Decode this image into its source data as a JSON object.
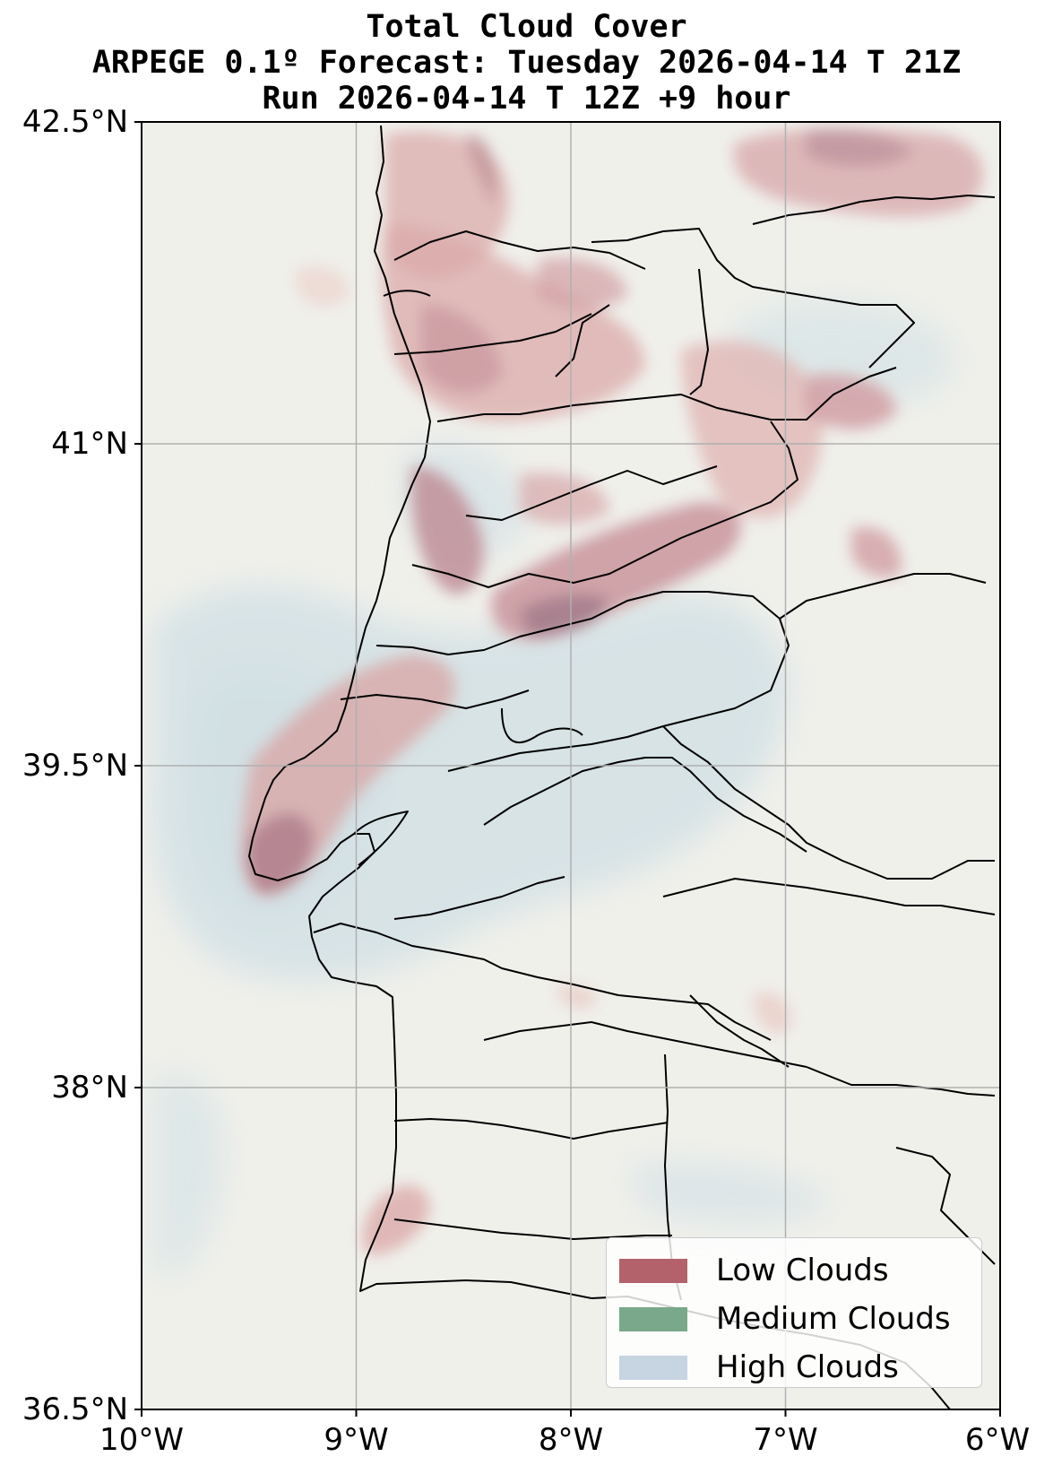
{
  "title": {
    "line1": "Total Cloud Cover",
    "line2": "ARPEGE 0.1º Forecast: Tuesday 2026-04-14 T 21Z",
    "line3": "Run 2026-04-14 T 12Z +9 hour"
  },
  "map": {
    "extent": {
      "lon": [
        -10,
        -6
      ],
      "lat": [
        36.5,
        42.5
      ]
    },
    "grid": true,
    "y_ticks": [
      {
        "lat": 42.5,
        "label": "42.5°N"
      },
      {
        "lat": 41,
        "label": "41°N"
      },
      {
        "lat": 39.5,
        "label": "39.5°N"
      },
      {
        "lat": 38,
        "label": "38°N"
      },
      {
        "lat": 36.5,
        "label": "36.5°N"
      }
    ],
    "x_ticks": [
      {
        "lon": -10,
        "label": "10°W"
      },
      {
        "lon": -9,
        "label": "9°W"
      },
      {
        "lon": -8,
        "label": "8°W"
      },
      {
        "lon": -7,
        "label": "7°W"
      },
      {
        "lon": -6,
        "label": "6°W"
      }
    ],
    "background_color": "#f0f0eb"
  },
  "legend": {
    "placement": "bottom-right",
    "items": [
      {
        "label": "Low Clouds",
        "color": "#b3616a"
      },
      {
        "label": "Medium Clouds",
        "color": "#7aa88a"
      },
      {
        "label": "High Clouds",
        "color": "#c7d4e2"
      }
    ]
  }
}
